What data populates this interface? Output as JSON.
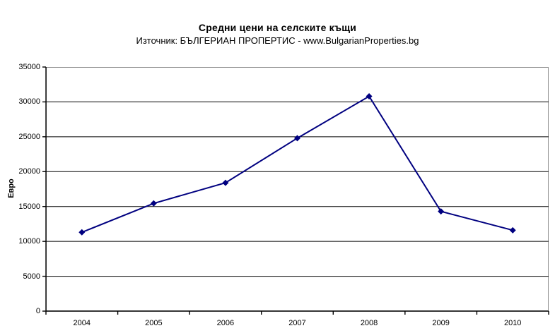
{
  "header": {
    "title": "Средни цени на селските къщи",
    "subtitle": "Източник: БЪЛГЕРИАН ПРОПЕРТИС - www.BulgarianProperties.bg"
  },
  "chart_data": {
    "type": "line",
    "categories": [
      "2004",
      "2005",
      "2006",
      "2007",
      "2008",
      "2009",
      "2010"
    ],
    "series": [
      {
        "name": "Средни цени на селските къщи (Евро)",
        "values": [
          11300,
          15450,
          18400,
          24800,
          30800,
          14300,
          11600
        ]
      }
    ],
    "title": "Средни цени на селските къщи",
    "subtitle": "Източник: БЪЛГЕРИАН ПРОПЕРТИС - www.BulgarianProperties.bg",
    "xlabel": "",
    "ylabel": "Евро",
    "ylim": [
      0,
      35000
    ],
    "ytick_step": 5000,
    "grid": true,
    "legend": "none",
    "marker": "diamond",
    "colors": {
      "line": "#000080",
      "marker": "#000080",
      "gridline": "#000000",
      "axis": "#000000",
      "plot_border": "#909090",
      "background": "#ffffff",
      "text": "#000000"
    }
  }
}
